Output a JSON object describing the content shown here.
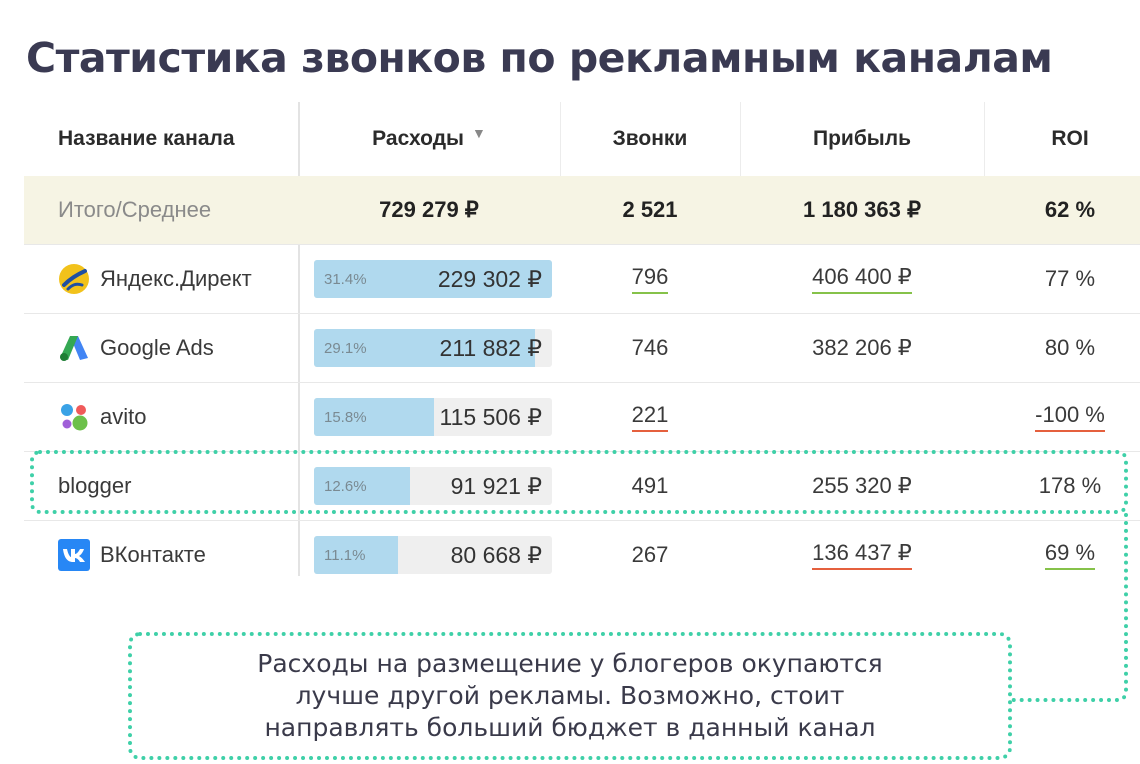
{
  "title": "Статистика звонков по рекламным каналам",
  "headers": {
    "name": "Название канала",
    "cost": "Расходы",
    "calls": "Звонки",
    "profit": "Прибыль",
    "roi": "ROI"
  },
  "total": {
    "name": "Итого/Среднее",
    "cost": "729 279 ₽",
    "calls": "2 521",
    "profit": "1 180 363 ₽",
    "roi": "62 %"
  },
  "rows": [
    {
      "name": "Яндекс.Директ",
      "icon": "yandex-direct-icon",
      "pct": "31.4%",
      "share": 0.314,
      "cost": "229 302 ₽",
      "calls": "796",
      "profit": "406 400 ₽",
      "roi": "77 %"
    },
    {
      "name": "Google Ads",
      "icon": "google-ads-icon",
      "pct": "29.1%",
      "share": 0.291,
      "cost": "211 882 ₽",
      "calls": "746",
      "profit": "382 206 ₽",
      "roi": "80 %"
    },
    {
      "name": "avito",
      "icon": "avito-icon",
      "pct": "15.8%",
      "share": 0.158,
      "cost": "115 506 ₽",
      "calls": "221",
      "profit": "",
      "roi": "-100 %"
    },
    {
      "name": "blogger",
      "icon": "",
      "pct": "12.6%",
      "share": 0.126,
      "cost": "91 921 ₽",
      "calls": "491",
      "profit": "255 320 ₽",
      "roi": "178 %"
    },
    {
      "name": "ВКонтакте",
      "icon": "vk-icon",
      "pct": "11.1%",
      "share": 0.111,
      "cost": "80 668 ₽",
      "calls": "267",
      "profit": "136 437 ₽",
      "roi": "69 %"
    }
  ],
  "callout": "Расходы на размещение у блогеров окупаются лучше другой рекламы. Возможно, стоит направлять больший бюджет в данный канал",
  "colors": {
    "bar_fill": "#b0d9ee",
    "total_bg": "#f6f4e4",
    "highlight": "#3fd0a8",
    "underline_green": "#86c24a",
    "underline_red": "#e5603e"
  }
}
